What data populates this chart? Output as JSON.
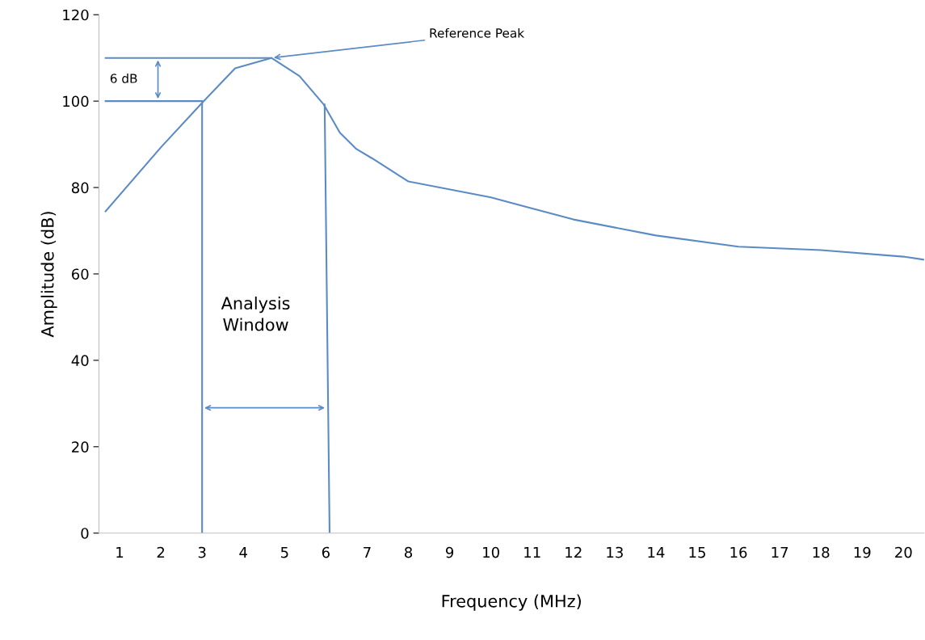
{
  "chart_data": {
    "type": "line",
    "xlabel": "Frequency (MHz)",
    "ylabel": "Amplitude (dB)",
    "xlim": [
      0.5,
      20.5
    ],
    "xticks": [
      1,
      2,
      3,
      4,
      5,
      6,
      7,
      8,
      9,
      10,
      11,
      12,
      13,
      14,
      15,
      16,
      17,
      18,
      19,
      20
    ],
    "ylim": [
      0,
      120
    ],
    "yticks": [
      0,
      20,
      40,
      60,
      80,
      100,
      120
    ],
    "grid": false,
    "legend": false,
    "series": [
      {
        "color": "#5b8bc4",
        "x": [
          0.66,
          2,
          3,
          3.8,
          4.68,
          5.36,
          5.95,
          6.34,
          6.74,
          7.13,
          8,
          10,
          12,
          14,
          16,
          18,
          20,
          20.5
        ],
        "values": [
          74.5,
          89.3,
          99.6,
          107.6,
          110,
          105.8,
          99.2,
          92.7,
          88.9,
          86.7,
          81.4,
          77.7,
          72.6,
          68.9,
          66.3,
          65.5,
          64.0,
          63.3
        ]
      },
      {
        "color": "#5b8bc4",
        "x": [
          0.66,
          4.68
        ],
        "values": [
          110,
          110
        ]
      },
      {
        "color": "#5b8bc4",
        "x": [
          0.66,
          3
        ],
        "values": [
          100,
          100
        ]
      },
      {
        "color": "#5b8bc4",
        "x": [
          3,
          3
        ],
        "values": [
          0,
          99.6
        ]
      },
      {
        "color": "#5b8bc4",
        "x": [
          5.97,
          6.09
        ],
        "values": [
          99.2,
          0
        ]
      }
    ],
    "annotations": [
      {
        "text": "Reference Peak",
        "x": 4.68,
        "y": 110
      },
      "6 dB",
      "Analysis Window"
    ]
  }
}
